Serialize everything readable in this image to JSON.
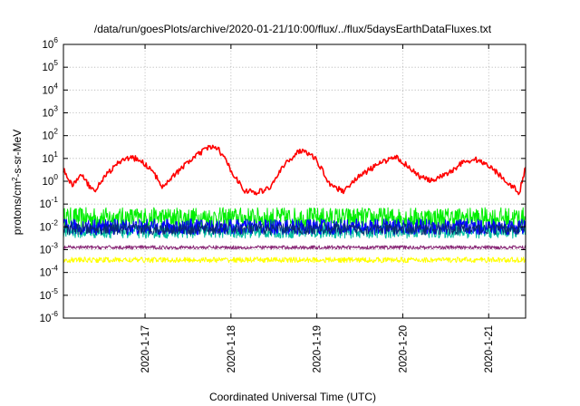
{
  "chart_data": {
    "type": "line",
    "title": "/data/run/goesPlots/archive/2020-01-21/10:00/flux/../flux/5daysEarthDataFluxes.txt",
    "xlabel": "Coordinated Universal Time (UTC)",
    "ylabel": {
      "base": "protons/cm",
      "sup": "2",
      "rest": "-s-sr-MeV"
    },
    "yscale": "log",
    "ylim_exp": [
      -6,
      6
    ],
    "y_ticks": [
      {
        "base": "10",
        "exp": "6"
      },
      {
        "base": "10",
        "exp": "5"
      },
      {
        "base": "10",
        "exp": "4"
      },
      {
        "base": "10",
        "exp": "3"
      },
      {
        "base": "10",
        "exp": "2"
      },
      {
        "base": "10",
        "exp": "1"
      },
      {
        "base": "10",
        "exp": "0"
      },
      {
        "base": "10",
        "exp": "-1"
      },
      {
        "base": "10",
        "exp": "-2"
      },
      {
        "base": "10",
        "exp": "-3"
      },
      {
        "base": "10",
        "exp": "-4"
      },
      {
        "base": "10",
        "exp": "-5"
      },
      {
        "base": "10",
        "exp": "-6"
      }
    ],
    "x_range_days": [
      0,
      5.38
    ],
    "x_ticks": [
      {
        "label": "2020-1-17",
        "day": 0.95
      },
      {
        "label": "2020-1-18",
        "day": 1.95
      },
      {
        "label": "2020-1-19",
        "day": 2.95
      },
      {
        "label": "2020-1-20",
        "day": 3.95
      },
      {
        "label": "2020-1-21",
        "day": 4.95
      }
    ],
    "grid": true,
    "legend": "none",
    "series": [
      {
        "color": "#ff0000",
        "kind": "orbital",
        "anchors": [
          [
            0,
            0.5
          ],
          [
            0.1,
            -0.2
          ],
          [
            0.2,
            0.3
          ],
          [
            0.35,
            -0.45
          ],
          [
            0.5,
            0.3
          ],
          [
            0.7,
            1.0
          ],
          [
            0.85,
            1.0
          ],
          [
            1.0,
            0.6
          ],
          [
            1.15,
            -0.2
          ],
          [
            1.3,
            0.3
          ],
          [
            1.5,
            1.0
          ],
          [
            1.7,
            1.5
          ],
          [
            1.8,
            1.45
          ],
          [
            1.95,
            0.5
          ],
          [
            2.1,
            -0.4
          ],
          [
            2.25,
            -0.5
          ],
          [
            2.4,
            -0.3
          ],
          [
            2.55,
            0.6
          ],
          [
            2.7,
            1.2
          ],
          [
            2.8,
            1.4
          ],
          [
            2.95,
            0.9
          ],
          [
            3.1,
            -0.1
          ],
          [
            3.25,
            -0.45
          ],
          [
            3.4,
            0.1
          ],
          [
            3.6,
            0.6
          ],
          [
            3.75,
            0.9
          ],
          [
            3.85,
            1.1
          ],
          [
            4.0,
            0.7
          ],
          [
            4.15,
            0.2
          ],
          [
            4.3,
            0.0
          ],
          [
            4.5,
            0.4
          ],
          [
            4.65,
            0.85
          ],
          [
            4.8,
            0.95
          ],
          [
            4.95,
            0.7
          ],
          [
            5.1,
            0.2
          ],
          [
            5.25,
            -0.3
          ],
          [
            5.3,
            -0.6
          ],
          [
            5.38,
            0.6
          ]
        ],
        "noise": 0.12,
        "width": 1.6
      },
      {
        "color": "#00ee00",
        "kind": "noisy",
        "center": -1.6,
        "spread": 0.45,
        "width": 1.0
      },
      {
        "color": "#00c0a0",
        "kind": "noisy",
        "center": -2.2,
        "spread": 0.3,
        "width": 1.0
      },
      {
        "color": "#0000ff",
        "kind": "noisy",
        "center": -2.0,
        "spread": 0.35,
        "width": 1.0
      },
      {
        "color": "#0a2a6e",
        "kind": "noisy",
        "center": -2.1,
        "spread": 0.25,
        "width": 0.8
      },
      {
        "color": "#8a2a78",
        "kind": "noisy",
        "center": -2.9,
        "spread": 0.08,
        "width": 1.0
      },
      {
        "color": "#ffff00",
        "kind": "noisy",
        "center": -3.45,
        "spread": 0.12,
        "width": 1.0
      }
    ]
  }
}
